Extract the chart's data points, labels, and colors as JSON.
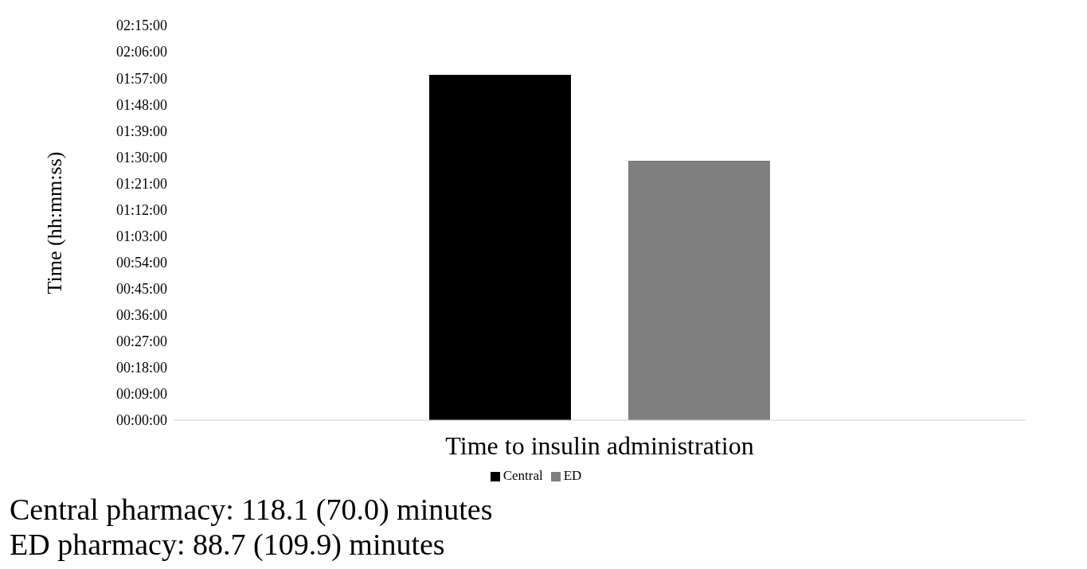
{
  "chart_data": {
    "type": "bar",
    "ylabel": "Time (hh:mm:ss)",
    "categories": [
      "Time to insulin administration"
    ],
    "series": [
      {
        "name": "Central",
        "color": "#000000",
        "values": [
          118.1
        ]
      },
      {
        "name": "ED",
        "color": "#7f7f7f",
        "values": [
          88.7
        ]
      }
    ],
    "ylim": [
      0,
      135
    ],
    "yticks": [
      {
        "value": 0,
        "label": "00:00:00"
      },
      {
        "value": 9,
        "label": "00:09:00"
      },
      {
        "value": 18,
        "label": "00:18:00"
      },
      {
        "value": 27,
        "label": "00:27:00"
      },
      {
        "value": 36,
        "label": "00:36:00"
      },
      {
        "value": 45,
        "label": "00:45:00"
      },
      {
        "value": 54,
        "label": "00:54:00"
      },
      {
        "value": 63,
        "label": "01:03:00"
      },
      {
        "value": 72,
        "label": "01:12:00"
      },
      {
        "value": 81,
        "label": "01:21:00"
      },
      {
        "value": 90,
        "label": "01:30:00"
      },
      {
        "value": 99,
        "label": "01:39:00"
      },
      {
        "value": 108,
        "label": "01:48:00"
      },
      {
        "value": 117,
        "label": "01:57:00"
      },
      {
        "value": 126,
        "label": "02:06:00"
      },
      {
        "value": 135,
        "label": "02:15:00"
      }
    ],
    "grid": false,
    "legend": "bottom",
    "annotations": [
      "Central pharmacy: 118.1 (70.0) minutes",
      "ED pharmacy: 88.7 (109.9) minutes"
    ]
  }
}
